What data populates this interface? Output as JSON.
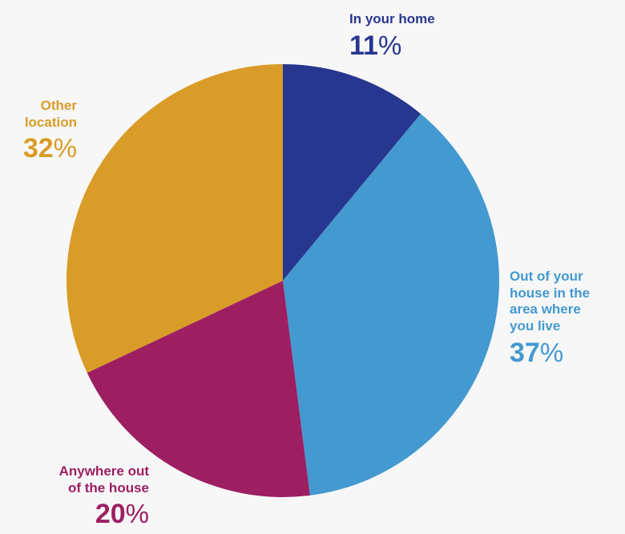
{
  "chart_data": {
    "type": "pie",
    "start_angle_deg": 0,
    "direction": "clockwise",
    "slices": [
      {
        "label": "In your home",
        "value": 11,
        "percent_symbol": "%",
        "color": "#27378f"
      },
      {
        "label": "Out of your\nhouse in the\narea where\nyou live",
        "value": 37,
        "percent_symbol": "%",
        "color": "#4399d0"
      },
      {
        "label": "Anywhere out\nof the house",
        "value": 20,
        "percent_symbol": "%",
        "color": "#9d1f62"
      },
      {
        "label": "Other\nlocation",
        "value": 32,
        "percent_symbol": "%",
        "color": "#d99c28"
      }
    ]
  }
}
